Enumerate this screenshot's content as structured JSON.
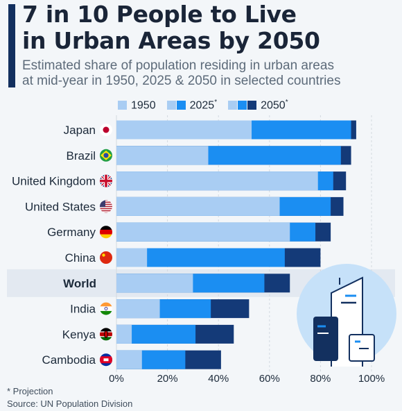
{
  "header": {
    "title_line1": "7 in 10 People to Live",
    "title_line2": "in Urban Areas by 2050",
    "subtitle_line1": "Estimated share of population residing in urban areas",
    "subtitle_line2": "at mid-year in 1950, 2025 & 2050 in selected countries"
  },
  "legend": [
    {
      "label": "1950",
      "mark": ""
    },
    {
      "label": "2025",
      "mark": "*"
    },
    {
      "label": "2050",
      "mark": "*"
    }
  ],
  "colors": {
    "s1950": "#a9cdf3",
    "s2025": "#1b8ef2",
    "s2050": "#143a78",
    "grid": "#d3d9e0",
    "world_band": "#e3e9f1",
    "accent": "#13305f",
    "illustration_circle": "#c6e1f9"
  },
  "chart_data": {
    "type": "bar",
    "orientation": "horizontal",
    "stacked_overlay": true,
    "categories": [
      "Japan",
      "Brazil",
      "United Kingdom",
      "United States",
      "Germany",
      "China",
      "World",
      "India",
      "Kenya",
      "Cambodia"
    ],
    "flags": [
      "japan-flag-icon",
      "brazil-flag-icon",
      "uk-flag-icon",
      "usa-flag-icon",
      "germany-flag-icon",
      "china-flag-icon",
      "",
      "india-flag-icon",
      "kenya-flag-icon",
      "cambodia-flag-icon"
    ],
    "highlight": "World",
    "series": [
      {
        "name": "1950",
        "values": [
          53,
          36,
          79,
          64,
          68,
          12,
          30,
          17,
          6,
          10
        ]
      },
      {
        "name": "2025*",
        "values": [
          92,
          88,
          85,
          84,
          78,
          66,
          58,
          37,
          31,
          27
        ]
      },
      {
        "name": "2050*",
        "values": [
          94,
          92,
          90,
          89,
          84,
          80,
          68,
          52,
          46,
          41
        ]
      }
    ],
    "x_ticks": [
      "0%",
      "20%",
      "40%",
      "60%",
      "80%",
      "100%"
    ],
    "xlim": [
      0,
      100
    ],
    "grid": true,
    "legend_position": "top"
  },
  "footer": {
    "note": "* Projection",
    "source": "Source: UN Population Division"
  }
}
